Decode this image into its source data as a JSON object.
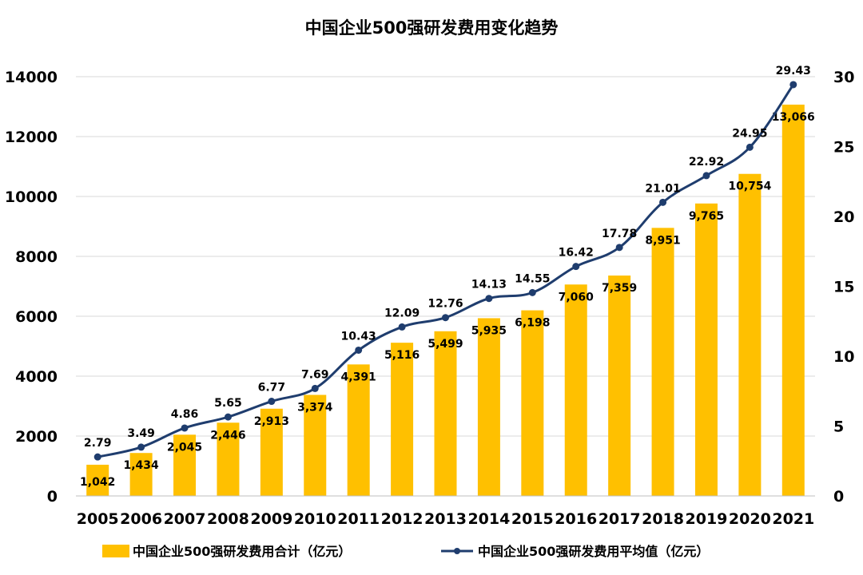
{
  "chart_data": {
    "type": "bar",
    "title": "中国企业500强研发费用变化趋势",
    "categories": [
      "2005",
      "2006",
      "2007",
      "2008",
      "2009",
      "2010",
      "2011",
      "2012",
      "2013",
      "2014",
      "2015",
      "2016",
      "2017",
      "2018",
      "2019",
      "2020",
      "2021"
    ],
    "series": [
      {
        "name": "中国企业500强研发费用合计（亿元）",
        "type": "bar",
        "axis": "left",
        "values": [
          1042,
          1434,
          2045,
          2446,
          2913,
          3374,
          4391,
          5116,
          5499,
          5935,
          6198,
          7060,
          7359,
          8951,
          9765,
          10754,
          13066
        ],
        "labels": [
          "1,042",
          "1,434",
          "2,045",
          "2,446",
          "2,913",
          "3,374",
          "4,391",
          "5,116",
          "5,499",
          "5,935",
          "6,198",
          "7,060",
          "7,359",
          "8,951",
          "9,765",
          "10,754",
          "13,066"
        ]
      },
      {
        "name": "中国企业500强研发费用平均值（亿元）",
        "type": "line",
        "axis": "right",
        "values": [
          2.79,
          3.49,
          4.86,
          5.65,
          6.77,
          7.69,
          10.43,
          12.09,
          12.76,
          14.13,
          14.55,
          16.42,
          17.78,
          21.01,
          22.92,
          24.95,
          29.43
        ],
        "labels": [
          "2.79",
          "3.49",
          "4.86",
          "5.65",
          "6.77",
          "7.69",
          "10.43",
          "12.09",
          "12.76",
          "14.13",
          "14.55",
          "16.42",
          "17.78",
          "21.01",
          "22.92",
          "24.95",
          "29.43"
        ]
      }
    ],
    "y_left": {
      "ylim": [
        0,
        14000
      ],
      "ticks": [
        "0",
        "2000",
        "4000",
        "6000",
        "8000",
        "10000",
        "12000",
        "14000"
      ]
    },
    "y_right": {
      "ylim": [
        0,
        30
      ],
      "ticks": [
        "0",
        "5",
        "10",
        "15",
        "20",
        "25",
        "30"
      ]
    },
    "grid": true,
    "legend_position": "bottom",
    "colors": {
      "bar": "#FFC000",
      "line": "#1F3D6E"
    }
  }
}
